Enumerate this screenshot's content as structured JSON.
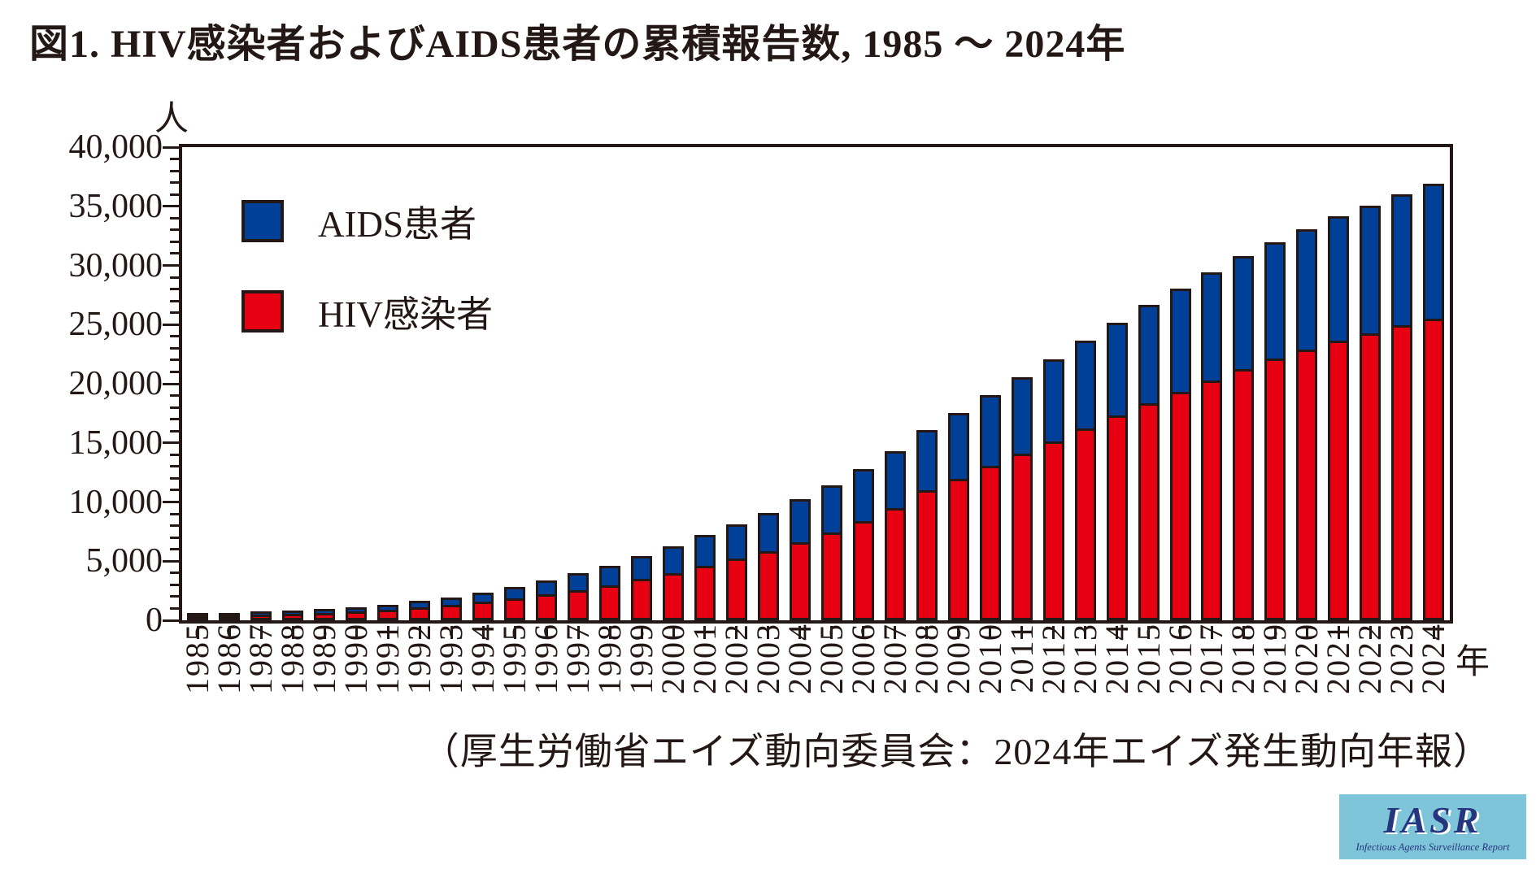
{
  "title": "図1.  HIV感染者およびAIDS患者の累積報告数, 1985 ～ 2024年",
  "caption": "（厚生労働省エイズ動向委員会：2024年エイズ発生動向年報）",
  "y_axis": {
    "unit": "人",
    "max": 40000,
    "minor_step": 1000,
    "major_step": 5000,
    "tick_labels": [
      "0",
      "5,000",
      "10,000",
      "15,000",
      "20,000",
      "25,000",
      "30,000",
      "35,000",
      "40,000"
    ]
  },
  "x_axis": {
    "unit": "年"
  },
  "legend": [
    {
      "label": "AIDS患者",
      "color": "#004098"
    },
    {
      "label": "HIV感染者",
      "color": "#e60012"
    }
  ],
  "colors": {
    "hiv_red": "#e60012",
    "aids_blue": "#004098",
    "outline_black": "#231815",
    "logo_bg": "#7ec5da",
    "logo_text": "#25357e"
  },
  "logo": {
    "text": "IASR",
    "subtext": "Infectious Agents Surveillance Report"
  },
  "chart_data": {
    "type": "bar",
    "stacked": true,
    "title": "図1. HIV感染者およびAIDS患者の累積報告数, 1985 ～ 2024年",
    "xlabel": "年",
    "ylabel": "人",
    "ylim": [
      0,
      40000
    ],
    "grid": false,
    "legend_position": "top-left",
    "categories": [
      1985,
      1986,
      1987,
      1988,
      1989,
      1990,
      1991,
      1992,
      1993,
      1994,
      1995,
      1996,
      1997,
      1998,
      1999,
      2000,
      2001,
      2002,
      2003,
      2004,
      2005,
      2006,
      2007,
      2008,
      2009,
      2010,
      2011,
      2012,
      2013,
      2014,
      2015,
      2016,
      2017,
      2018,
      2019,
      2020,
      2021,
      2022,
      2023,
      2024
    ],
    "series": [
      {
        "name": "HIV感染者",
        "color": "#e60012",
        "values": [
          5,
          20,
          80,
          115,
          205,
          315,
          480,
          700,
          915,
          1170,
          1450,
          1790,
          2140,
          2560,
          3090,
          3550,
          4170,
          4785,
          5425,
          6205,
          7040,
          7990,
          9070,
          10552,
          11573,
          12648,
          13704,
          14706,
          15812,
          16903,
          17909,
          18920,
          19896,
          20836,
          21739,
          22489,
          23231,
          23863,
          24532,
          25092
        ]
      },
      {
        "name": "AIDS患者",
        "color": "#004098",
        "values": [
          10,
          20,
          45,
          70,
          115,
          160,
          225,
          315,
          425,
          565,
          730,
          955,
          1205,
          1435,
          1735,
          2065,
          2395,
          2705,
          3040,
          3425,
          3790,
          4200,
          4615,
          4899,
          5330,
          5799,
          6272,
          6719,
          7203,
          7658,
          8086,
          8523,
          8936,
          9313,
          9646,
          9991,
          10306,
          10558,
          10849,
          11169
        ]
      }
    ]
  }
}
